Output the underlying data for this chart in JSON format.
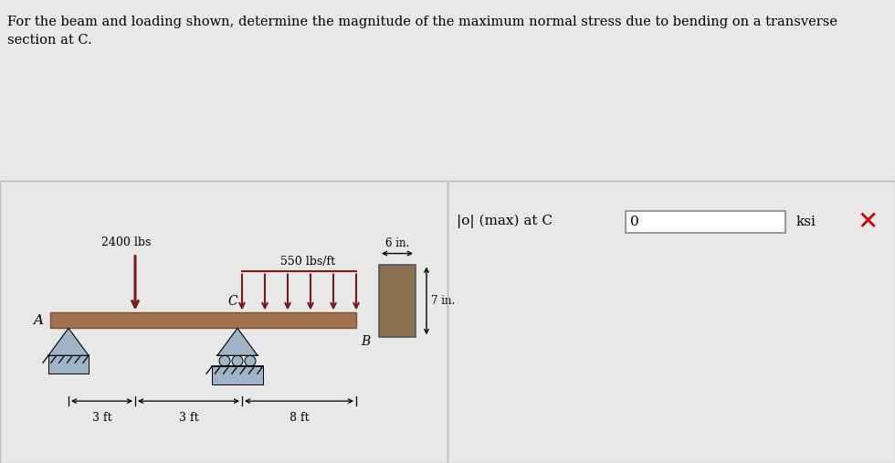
{
  "title_text1": "For the beam and loading shown, determine the magnitude of the maximum normal stress due to bending on a transverse",
  "title_text2": "section at C.",
  "title_fontsize": 10.5,
  "bg_color": "#e8e8e8",
  "top_panel_color": "#ffffff",
  "left_panel_color": "#ffffff",
  "right_panel_color": "#e8e8e8",
  "beam_color": "#a0714f",
  "beam_dark": "#7a5230",
  "support_color": "#a0b4c8",
  "cross_sec_color": "#8B7050",
  "arrow_color": "#7a1a1a",
  "dim_color": "#000000",
  "x_mark_color": "#cc0000",
  "answer_label": "|o| (max) at C",
  "answer_value": "0",
  "answer_unit": "ksi",
  "point_load_label": "2400 lbs",
  "dist_load_label": "550 lbs/ft",
  "six_in": "6 in.",
  "seven_in": "7 in.",
  "dim1": "3 ft",
  "dim2": "3 ft",
  "dim3": "8 ft",
  "label_A": "A",
  "label_B": "B",
  "label_C": "C"
}
